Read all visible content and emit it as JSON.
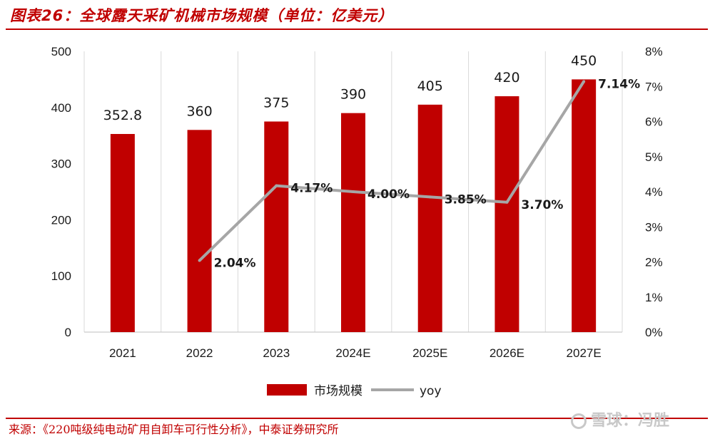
{
  "header": {
    "title": "图表26：全球露天采矿机械市场规模（单位：亿美元）"
  },
  "footer": {
    "source": "来源：《220吨级纯电动矿用自卸车可行性分析》，中泰证券研究所"
  },
  "watermark": {
    "text": "雪球：冯胜"
  },
  "colors": {
    "bar": "#c00000",
    "line": "#a6a6a6",
    "accent": "#c00000"
  },
  "chart_data": {
    "type": "bar",
    "categories": [
      "2021",
      "2022",
      "2023",
      "2024E",
      "2025E",
      "2026E",
      "2027E"
    ],
    "series": [
      {
        "name": "市场规模",
        "type": "bar",
        "axis": "left",
        "values": [
          352.8,
          360,
          375,
          390,
          405,
          420,
          450
        ],
        "labels": [
          "352.8",
          "360",
          "375",
          "390",
          "405",
          "420",
          "450"
        ]
      },
      {
        "name": "yoy",
        "type": "line",
        "axis": "right",
        "values": [
          null,
          2.04,
          4.17,
          4.0,
          3.85,
          3.7,
          7.14
        ],
        "labels": [
          "",
          "2.04%",
          "4.17%",
          "4.00%",
          "3.85%",
          "3.70%",
          "7.14%"
        ]
      }
    ],
    "y_left": {
      "min": 0,
      "max": 500,
      "ticks": [
        "0",
        "100",
        "200",
        "300",
        "400",
        "500"
      ]
    },
    "y_right": {
      "min": 0,
      "max": 8,
      "ticks": [
        "0%",
        "1%",
        "2%",
        "3%",
        "4%",
        "5%",
        "6%",
        "7%",
        "8%"
      ]
    },
    "grid": "vertical-separators",
    "legend_position": "bottom-center"
  }
}
